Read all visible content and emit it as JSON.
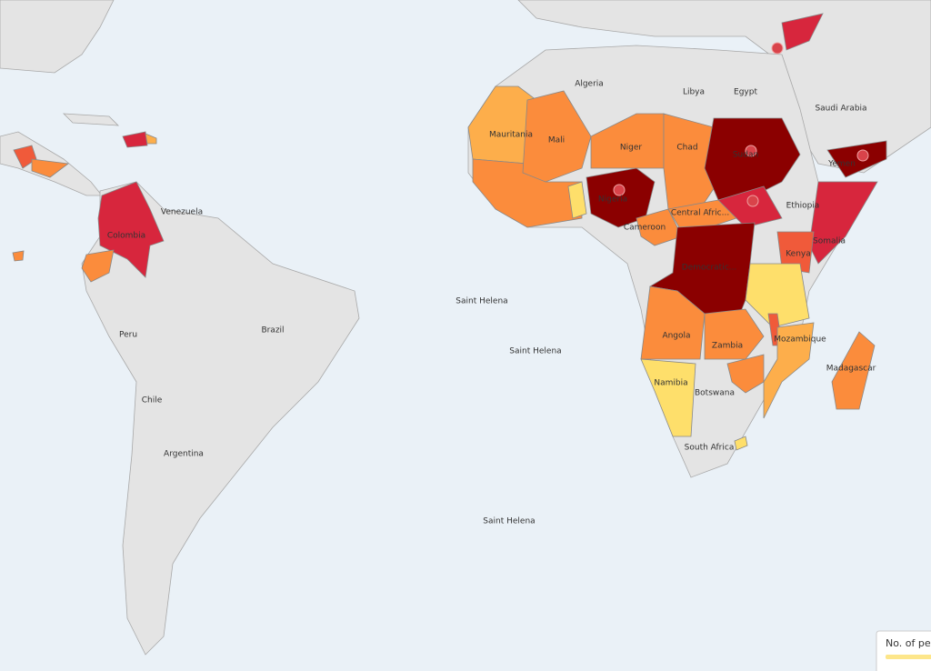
{
  "labels": {
    "algeria": "Algeria",
    "libya": "Libya",
    "egypt": "Egypt",
    "saudi_arabia": "Saudi Arabia",
    "mauritania": "Mauritania",
    "mali": "Mali",
    "niger": "Niger",
    "chad": "Chad",
    "sudan": "Sudan",
    "yemen": "Yemen",
    "nigeria": "Nigeria",
    "ethiopia": "Ethiopia",
    "somalia": "Somalia",
    "cameroon": "Cameroon",
    "central_african": "Central Afric...",
    "kenya": "Kenya",
    "democratic": "Democratic...",
    "angola": "Angola",
    "zambia": "Zambia",
    "mozambique": "Mozambique",
    "madagascar": "Madagascar",
    "namibia": "Namibia",
    "botswana": "Botswana",
    "south_africa": "South Africa",
    "colombia": "Colombia",
    "venezuela": "Venezuela",
    "peru": "Peru",
    "brazil": "Brazil",
    "chile": "Chile",
    "argentina": "Argentina",
    "saint_helena": [
      "Saint Helena",
      "Saint Helena",
      "Saint Helena"
    ]
  },
  "legend": {
    "title": "No. of pe"
  }
}
